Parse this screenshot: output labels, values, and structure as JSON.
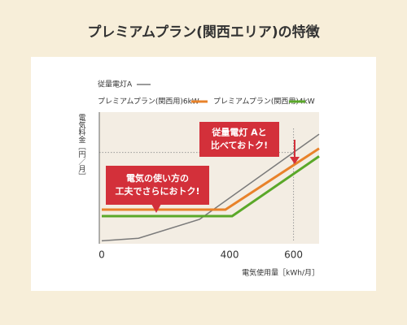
{
  "chart_data": {
    "type": "line",
    "title": "プレミアムプラン(関西エリア)の特徴",
    "x_label": "電気使用量［kWh/月］",
    "y_label": "電気料金［円／月］",
    "xlim": [
      0,
      680
    ],
    "ylim": [
      0,
      100
    ],
    "xticks": [
      0,
      400,
      600
    ],
    "series": [
      {
        "name": "従量電灯A",
        "color": "#7a7a7a",
        "x": [
          0,
          115,
          306,
          680
        ],
        "values": [
          1,
          3,
          17.5,
          83
        ]
      },
      {
        "name": "プレミアムプラン(関西用)6kW",
        "color": "#e8822a",
        "x": [
          0,
          387,
          680
        ],
        "values": [
          25,
          25,
          72
        ]
      },
      {
        "name": "プレミアムプラン(関西用)4kW",
        "color": "#5aa829",
        "x": [
          0,
          408,
          680
        ],
        "values": [
          20,
          20,
          66
        ]
      }
    ],
    "annotations": [
      {
        "lines": [
          "従量電灯 Aと",
          "比べておトク!"
        ]
      },
      {
        "lines": [
          "電気の使い方の",
          "工夫でさらにおトク!"
        ]
      }
    ]
  }
}
